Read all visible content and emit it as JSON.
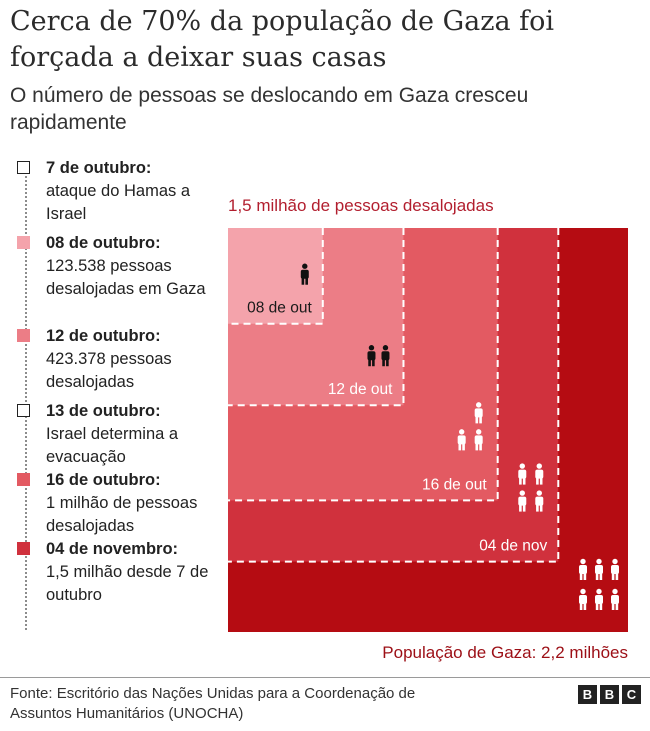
{
  "header": {
    "title": "Cerca de 70% da população de Gaza foi forçada a deixar suas casas",
    "subtitle": "O número de pessoas se deslocando em Gaza cresceu rapidamente"
  },
  "colors": {
    "d1": "#f4a3ab",
    "d2": "#ec7d86",
    "d3": "#e35a62",
    "d4": "#d0313d",
    "population": "#b50c12",
    "label_red": "#b21e2e"
  },
  "timeline": [
    {
      "date": "7 de outubro:",
      "desc": "ataque do Hamas a Israel",
      "marker": "outline"
    },
    {
      "date": "08 de outubro:",
      "desc": "123.538 pessoas desalojadas em Gaza",
      "marker": "#f4a3ab"
    },
    {
      "date": "12 de outubro:",
      "desc": "423.378 pessoas desalojadas",
      "marker": "#ec7d86"
    },
    {
      "date": "13 de outubro:",
      "desc": "Israel determina a evacuação",
      "marker": "outline"
    },
    {
      "date": "16 de outubro:",
      "desc": "1 milhão de pessoas desalojadas",
      "marker": "#e35a62"
    },
    {
      "date": "04 de novembro:",
      "desc": "1,5 milhão desde 7 de outubro",
      "marker": "#d0313d"
    }
  ],
  "chart_data": {
    "type": "area",
    "annotation_top": "1,5 milhão de pessoas desalojadas",
    "population_label": "População de Gaza: 2,2 milhões",
    "population_total": 2200000,
    "series": [
      {
        "name": "08 de out",
        "value": 123538,
        "icons": 1
      },
      {
        "name": "12 de out",
        "value": 423378,
        "icons": 2
      },
      {
        "name": "16 de out",
        "value": 1000000,
        "icons": 3
      },
      {
        "name": "04 de nov",
        "value": 1500000,
        "icons": 4
      }
    ],
    "population_icons": 6
  },
  "footer": {
    "source": "Fonte: Escritório das Nações Unidas para a Coordenação de Assuntos Humanitários (UNOCHA)",
    "logo": [
      "B",
      "B",
      "C"
    ]
  }
}
